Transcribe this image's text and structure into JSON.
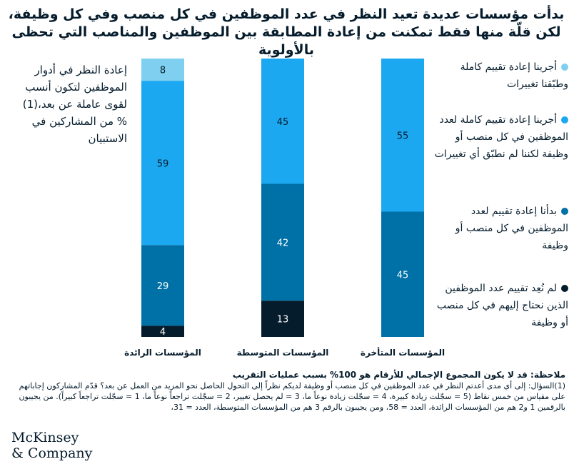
{
  "title": "بدأت مؤسسات عديدة تعيد النظر في عدد الموظفين في كل منصب وفي كل وظيفة، لكن قلّة منها فقط تمكنت من إعادة المطابقة بين الموظفين والمناصب التي تحظى بالأولوية",
  "chart_data": {
    "type": "bar",
    "stacked": true,
    "ylabel": "إعادة النظر في أدوار الموظفين لتكون أنسب لقوى عاملة عن بعد،(1) % من المشاركين في الاستبيان",
    "categories": [
      "المؤسسات الرائدة",
      "المؤسسات المتوسطة",
      "المؤسسات المتأخرة"
    ],
    "series": [
      {
        "name": "أجرينا إعادة تقييم كاملة وطبّقنا تغييرات",
        "color": "#7fd0f0",
        "values": [
          8,
          0,
          0
        ]
      },
      {
        "name": "أجرينا إعادة تقييم كاملة لعدد الموظفين في كل منصب أو وظيفة لكننا لم نطبّق أي تغييرات",
        "color": "#1ba8f0",
        "values": [
          59,
          45,
          55
        ]
      },
      {
        "name": "بدأنا إعادة تقييم لعدد الموظفين في كل منصب أو وظيفة",
        "color": "#0071a7",
        "values": [
          29,
          42,
          45
        ]
      },
      {
        "name": "لم نُعِد تقييم عدد الموظفين الذين نحتاج إليهم في كل منصب أو وظيفة",
        "color": "#051c2c",
        "values": [
          4,
          13,
          0
        ]
      }
    ],
    "ylim": [
      0,
      100
    ],
    "grid": false,
    "legend_position": "right"
  },
  "notes": [
    "ملاحظة: قد لا يكون المجموع الإجمالي للأرقام هو 100% بسبب عمليات التقريب",
    "(1)السؤال: إلى أي مدى أعدتم النظر في عدد الموظفين في كل منصب أو وظيفة لديكم نظراً إلى التحول الحاصل نحو المزيد من العمل عن بعد؟ قدّم المشاركون إجاباتهم على مقياس من خمس نقاط (5 = سجّلت زيادة كبيرة، 4 = سجّلت زيادة نوعاً ما، 3 = لم يحصل تغيير، 2 = سجّلت تراجعاً نوعاً ما، 1 = سجّلت تراجعاً كبيراً). من يجيبون بالرقمين 1 و2 هم من المؤسسات الرائدة، العدد = 58، ومن يجيبون بالرقم 3 هم من المؤسسات المتوسطة، العدد = 31،"
  ],
  "logo": [
    "McKinsey",
    "& Company"
  ]
}
